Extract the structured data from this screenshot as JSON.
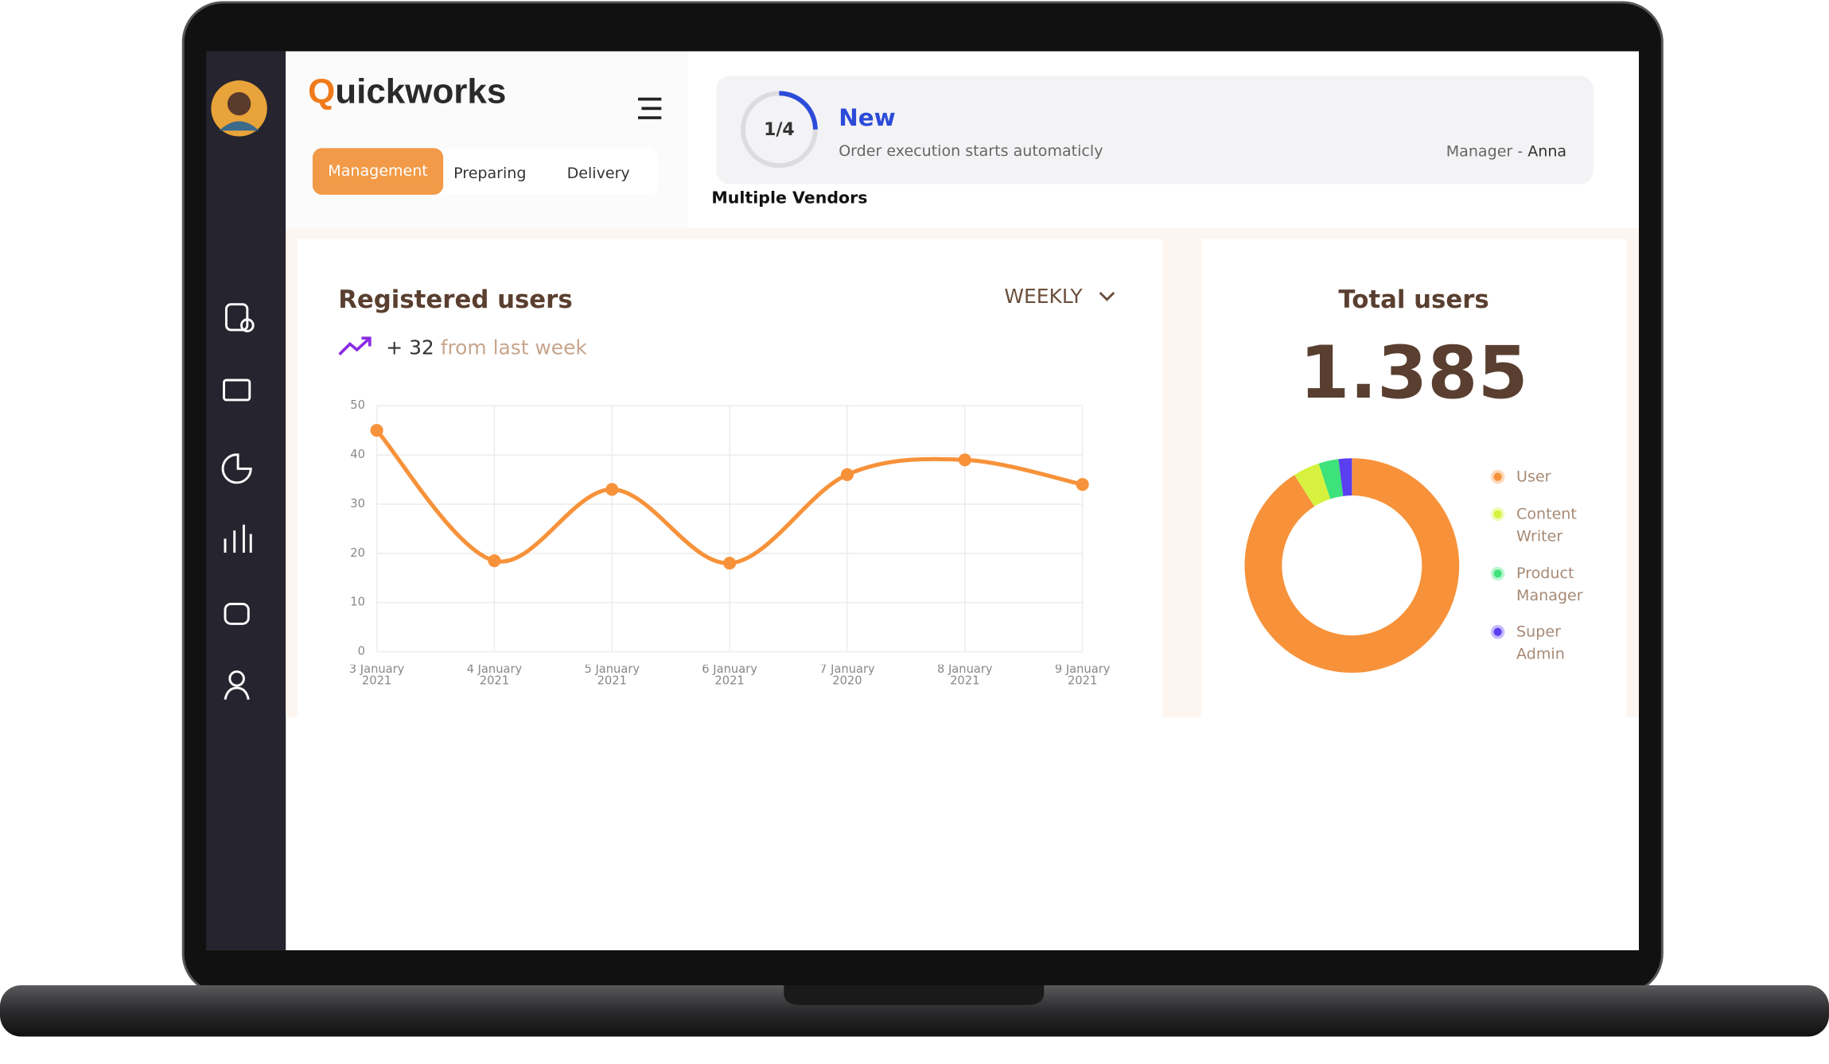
{
  "header": {
    "logo_first": "Q",
    "logo_rest": "uickworks",
    "tabs": [
      "Management",
      "Preparing",
      "Delivery"
    ]
  },
  "order": {
    "step": "1/4",
    "status": "New",
    "description": "Order execution starts automaticly",
    "manager_label": "Manager -",
    "manager_name": "Anna",
    "caption": "Multiple Vendors"
  },
  "chart_data": [
    {
      "type": "line",
      "title": "Registered users",
      "period": "WEEKLY",
      "change": "+ 32",
      "change_note": "from last week",
      "categories": [
        "3 January 2021",
        "4 January 2021",
        "5 January 2021",
        "6 January 2021",
        "7 January 2020",
        "8 January 2021",
        "9 January 2021"
      ],
      "values": [
        45,
        18.5,
        33,
        18,
        36,
        39,
        34
      ],
      "color": "#f7923a",
      "ylim": [
        0,
        50
      ],
      "yticks": [
        0,
        10,
        20,
        30,
        40,
        50
      ],
      "grid": true
    },
    {
      "type": "pie",
      "title": "Total users",
      "total": "1.385",
      "categories": [
        "User",
        "Content Writer",
        "Product Manager",
        "Super Admin"
      ],
      "values": [
        91,
        4,
        3,
        2
      ],
      "colors": [
        "#f7923a",
        "#d6f23e",
        "#3ee27a",
        "#5a3ff0"
      ],
      "donut": true
    }
  ]
}
